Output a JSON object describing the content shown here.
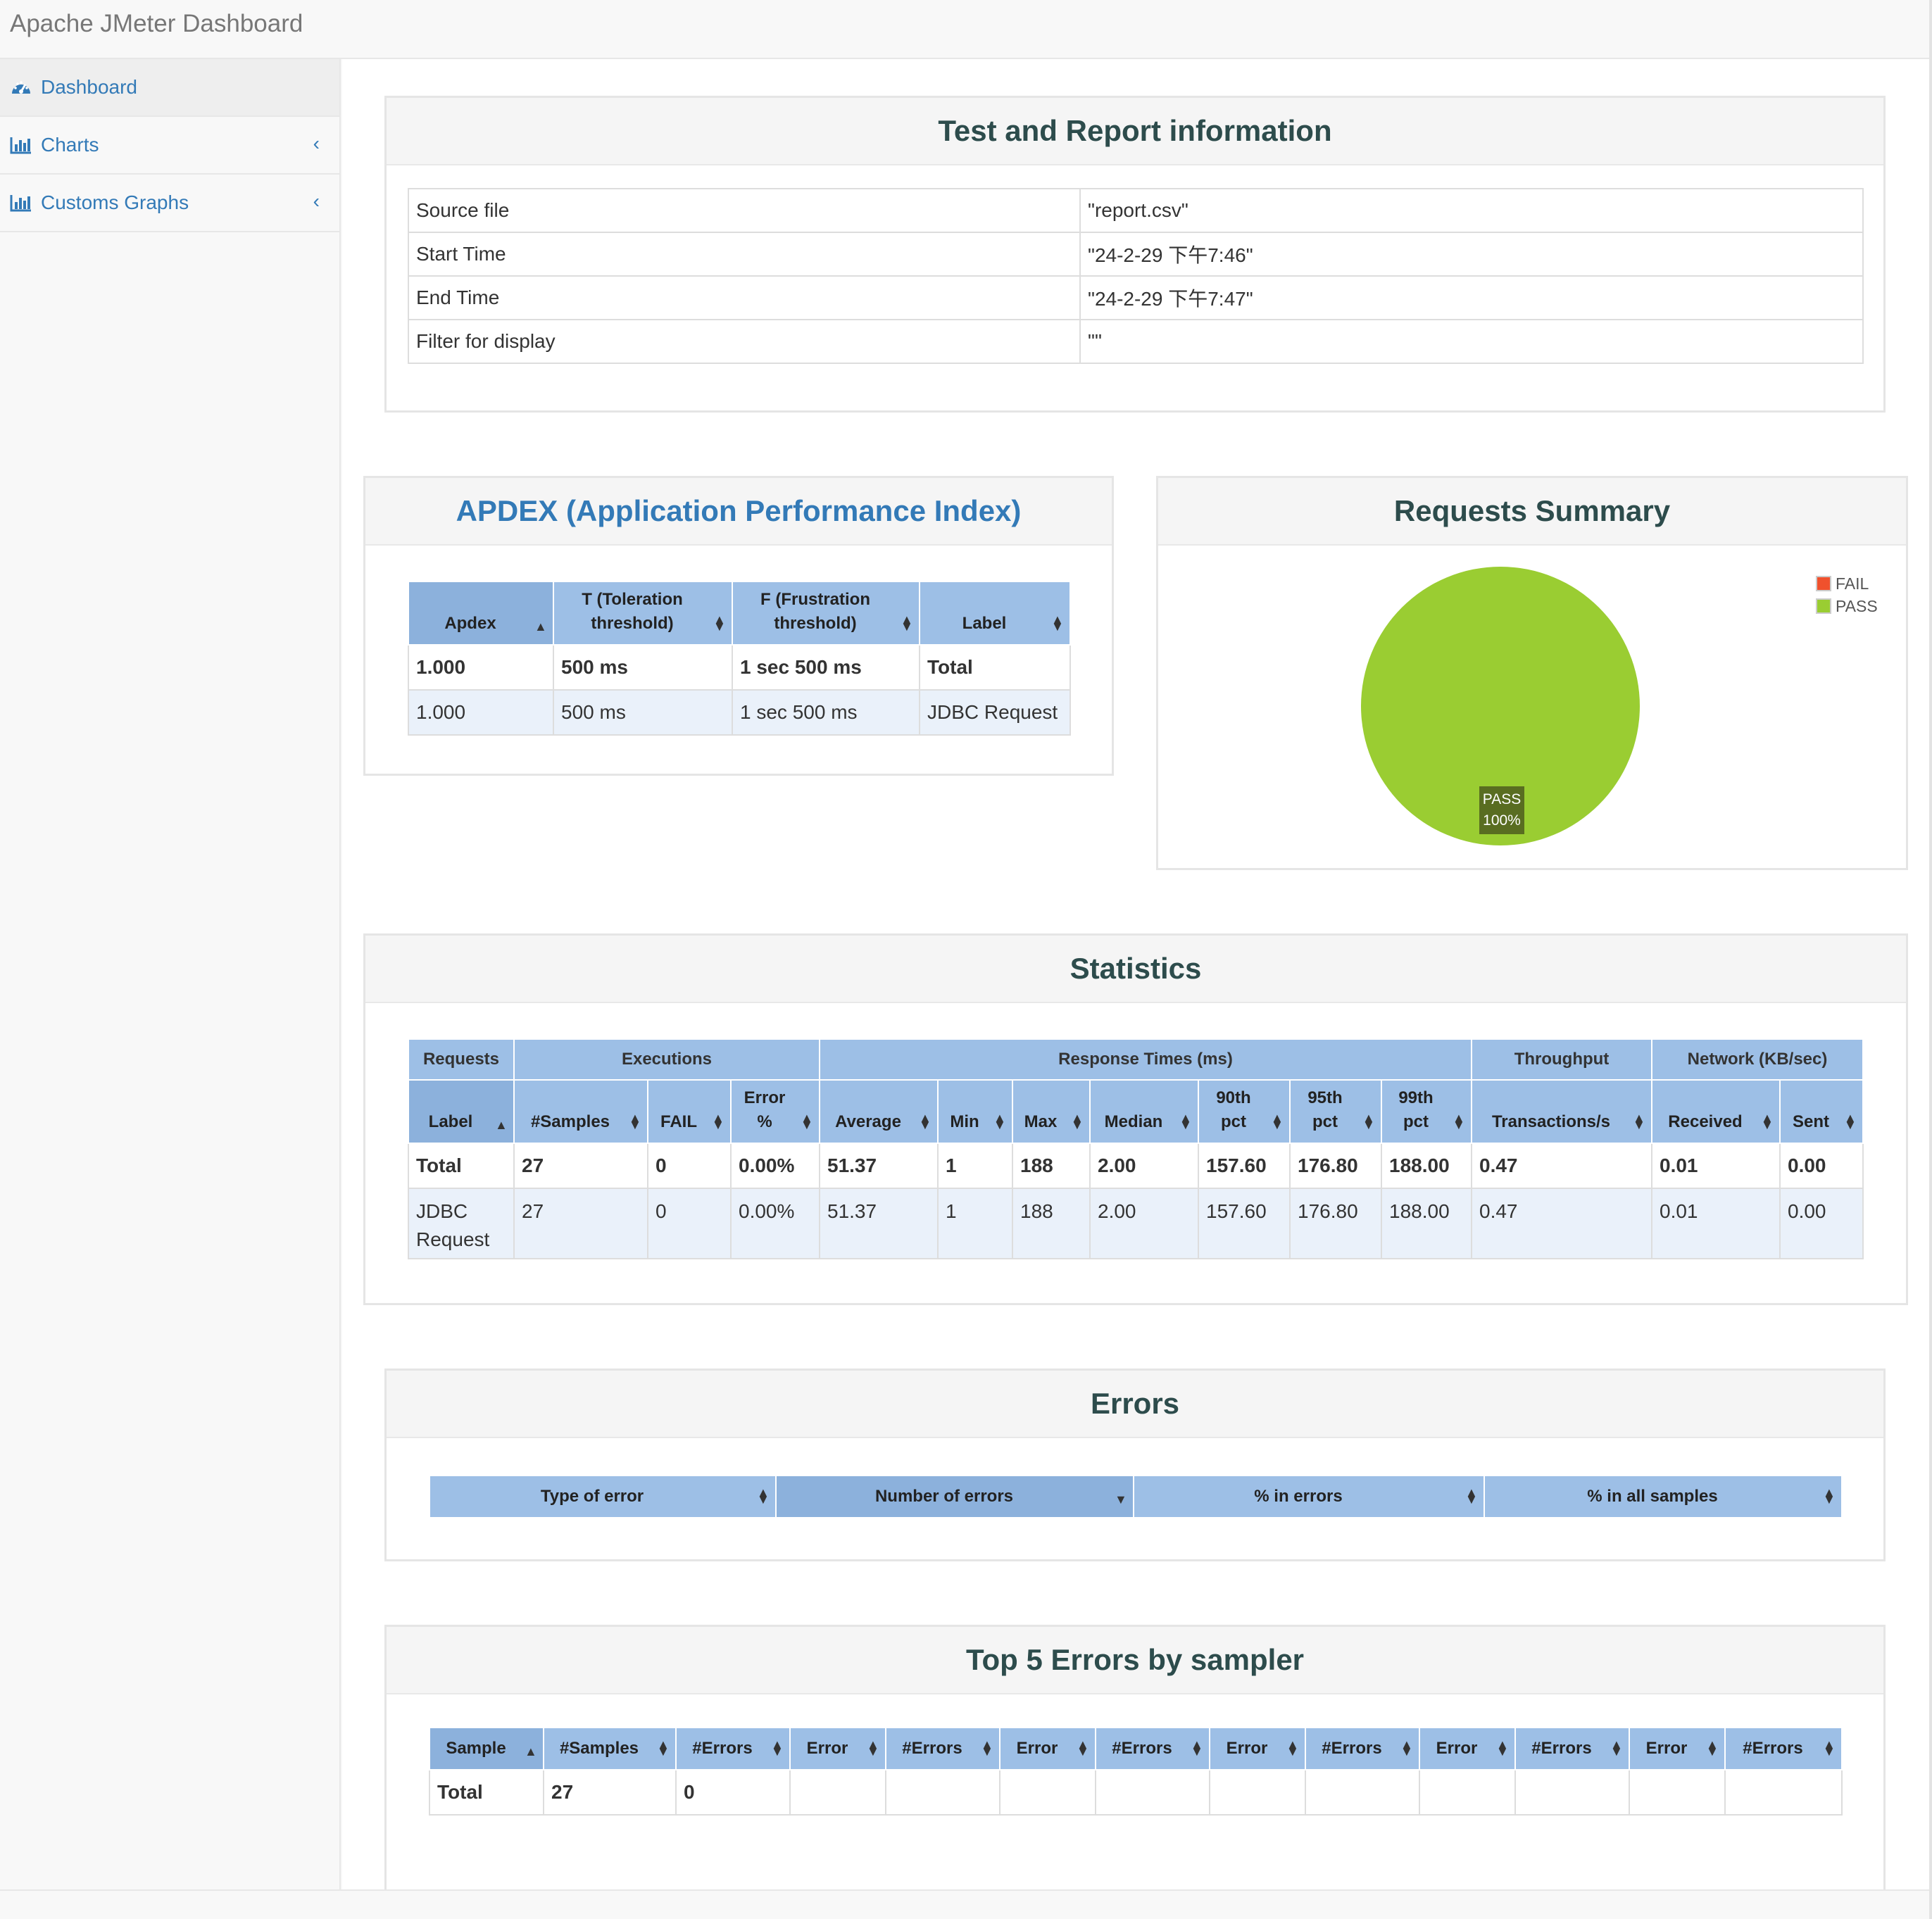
{
  "app": {
    "title": "Apache JMeter Dashboard"
  },
  "sidebar": {
    "items": [
      {
        "label": "Dashboard",
        "icon": "dashboard-icon"
      },
      {
        "label": "Charts",
        "icon": "bar-chart-icon"
      },
      {
        "label": "Customs Graphs",
        "icon": "bar-chart-icon"
      }
    ]
  },
  "info": {
    "title": "Test and Report information",
    "rows": [
      {
        "key": "Source file",
        "value": "\"report.csv\""
      },
      {
        "key": "Start Time",
        "value": "\"24-2-29 下午7:46\""
      },
      {
        "key": "End Time",
        "value": "\"24-2-29 下午7:47\""
      },
      {
        "key": "Filter for display",
        "value": "\"\""
      }
    ]
  },
  "apdex": {
    "title": "APDEX (Application Performance Index)",
    "headers": [
      "Apdex",
      "T (Toleration threshold)",
      "F (Frustration threshold)",
      "Label"
    ],
    "rows": [
      [
        "1.000",
        "500 ms",
        "1 sec 500 ms",
        "Total"
      ],
      [
        "1.000",
        "500 ms",
        "1 sec 500 ms",
        "JDBC Request"
      ]
    ]
  },
  "requests_summary": {
    "title": "Requests Summary",
    "legend": [
      {
        "label": "FAIL",
        "color": "#f0512d"
      },
      {
        "label": "PASS",
        "color": "#9acd32"
      }
    ],
    "slice_label": "PASS",
    "slice_pct": "100%"
  },
  "chart_data": {
    "type": "pie",
    "categories": [
      "FAIL",
      "PASS"
    ],
    "values": [
      0,
      100
    ],
    "title": "Requests Summary"
  },
  "statistics": {
    "title": "Statistics",
    "groups": [
      "Requests",
      "Executions",
      "Response Times (ms)",
      "Throughput",
      "Network (KB/sec)"
    ],
    "headers": [
      "Label",
      "#Samples",
      "FAIL",
      "Error %",
      "Average",
      "Min",
      "Max",
      "Median",
      "90th pct",
      "95th pct",
      "99th pct",
      "Transactions/s",
      "Received",
      "Sent"
    ],
    "rows": [
      [
        "Total",
        "27",
        "0",
        "0.00%",
        "51.37",
        "1",
        "188",
        "2.00",
        "157.60",
        "176.80",
        "188.00",
        "0.47",
        "0.01",
        "0.00"
      ],
      [
        "JDBC Request",
        "27",
        "0",
        "0.00%",
        "51.37",
        "1",
        "188",
        "2.00",
        "157.60",
        "176.80",
        "188.00",
        "0.47",
        "0.01",
        "0.00"
      ]
    ]
  },
  "errors": {
    "title": "Errors",
    "headers": [
      "Type of error",
      "Number of errors",
      "% in errors",
      "% in all samples"
    ]
  },
  "top5": {
    "title": "Top 5 Errors by sampler",
    "headers": [
      "Sample",
      "#Samples",
      "#Errors",
      "Error",
      "#Errors",
      "Error",
      "#Errors",
      "Error",
      "#Errors",
      "Error",
      "#Errors",
      "Error",
      "#Errors"
    ],
    "rows": [
      [
        "Total",
        "27",
        "0",
        "",
        "",
        "",
        "",
        "",
        "",
        "",
        "",
        "",
        ""
      ]
    ]
  }
}
